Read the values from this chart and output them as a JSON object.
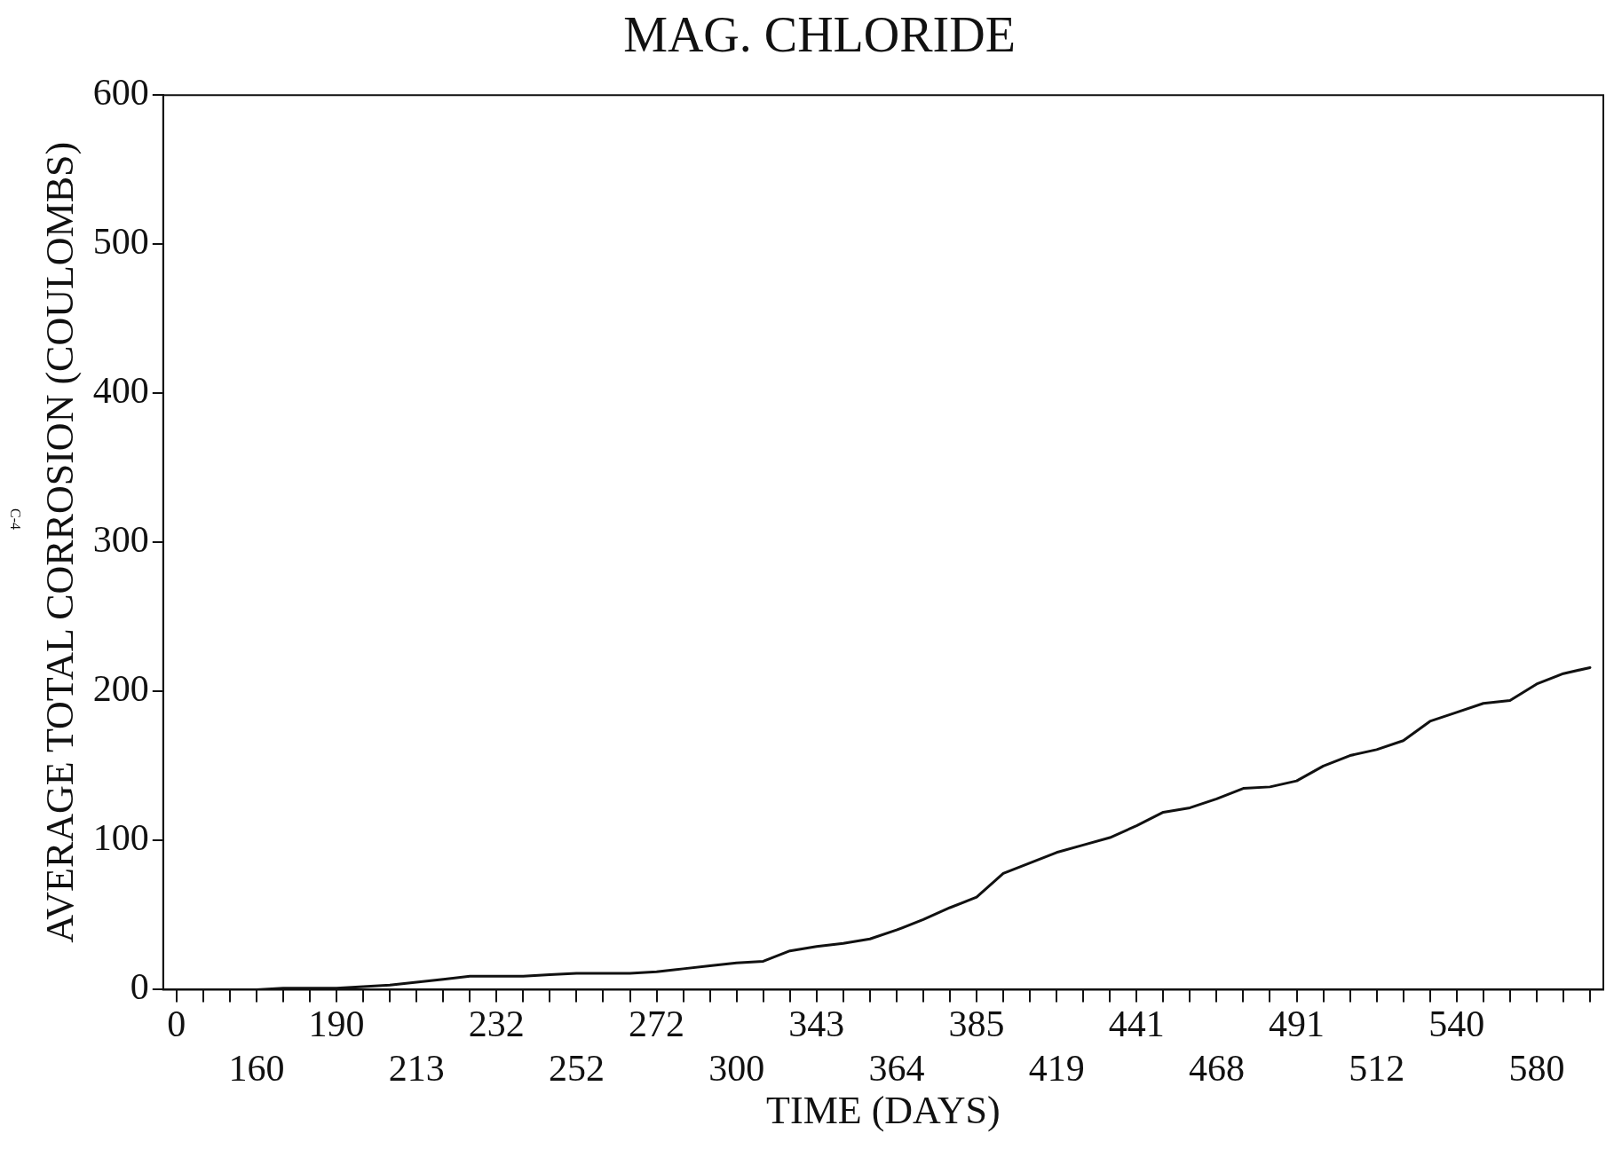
{
  "chart_data": {
    "type": "line",
    "title": "MAG. CHLORIDE",
    "xlabel": "TIME (DAYS)",
    "ylabel": "AVERAGE TOTAL CORROSION (COULOMBS)",
    "annotations": [
      "C-4"
    ],
    "categories": [
      "0",
      null,
      null,
      "160",
      null,
      null,
      "190",
      null,
      null,
      "213",
      null,
      null,
      "232",
      null,
      null,
      "252",
      null,
      null,
      "272",
      null,
      null,
      "300",
      null,
      null,
      "343",
      null,
      null,
      "364",
      null,
      null,
      "385",
      null,
      null,
      "419",
      null,
      null,
      "441",
      null,
      null,
      "468",
      null,
      null,
      "491",
      null,
      null,
      "512",
      null,
      null,
      "540",
      null,
      null,
      "580",
      null,
      null
    ],
    "series": [
      {
        "color": "#111111",
        "values": [
          0,
          0,
          0,
          0,
          1,
          1,
          1,
          2,
          3,
          5,
          7,
          9,
          9,
          9,
          10,
          11,
          11,
          11,
          12,
          14,
          16,
          18,
          19,
          26,
          29,
          31,
          34,
          40,
          47,
          55,
          62,
          78,
          85,
          92,
          97,
          102,
          110,
          119,
          122,
          128,
          135,
          136,
          140,
          150,
          157,
          161,
          167,
          180,
          186,
          192,
          194,
          205,
          212,
          216
        ]
      }
    ],
    "ylim": [
      0,
      600
    ],
    "yticks": [
      0,
      100,
      200,
      300,
      400,
      500,
      600
    ],
    "grid": false,
    "legend": false,
    "marker": "none",
    "line_style": "solid"
  }
}
